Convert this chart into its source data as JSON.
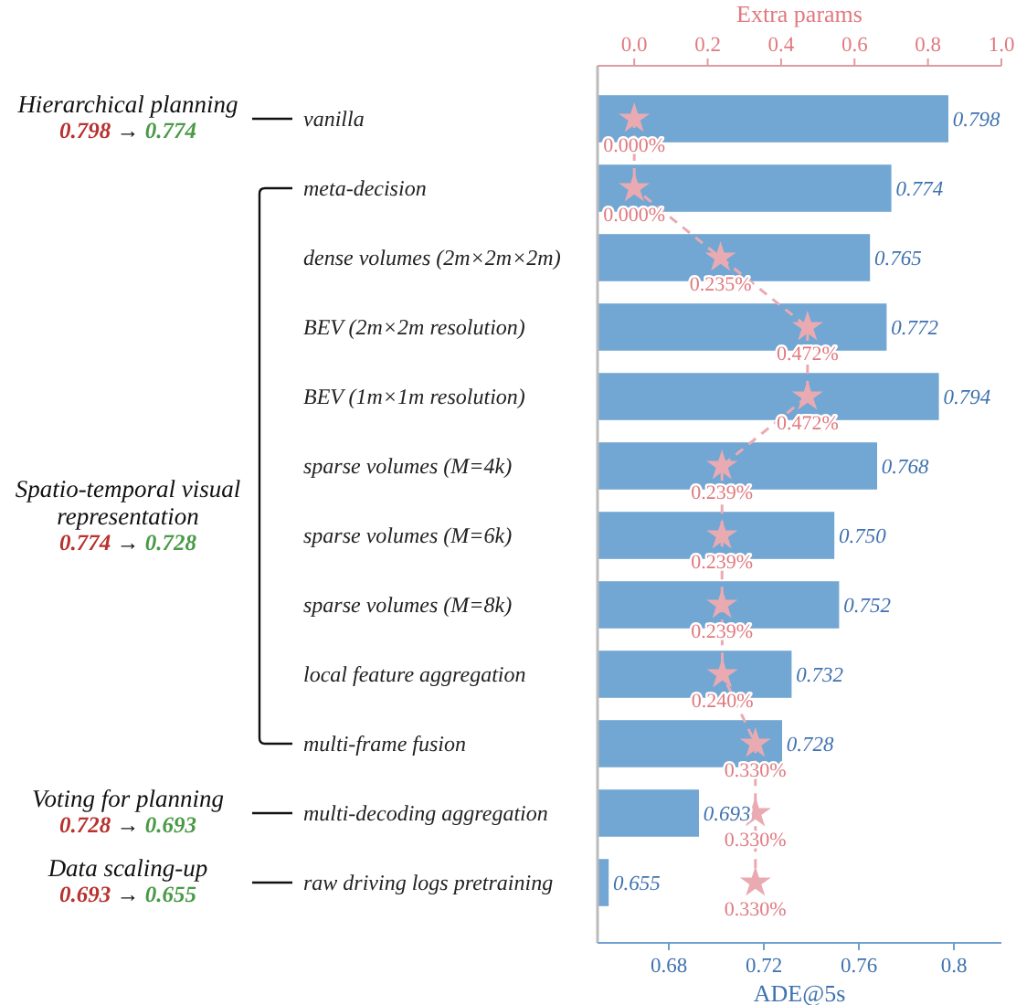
{
  "chart_data": {
    "type": "bar",
    "orientation": "horizontal",
    "categories": [
      "vanilla",
      "meta-decision",
      "dense volumes (2m×2m×2m)",
      "BEV (2m×2m resolution)",
      "BEV (1m×1m resolution)",
      "sparse volumes (M=4k)",
      "sparse volumes (M=6k)",
      "sparse volumes (M=8k)",
      "local feature aggregation",
      "multi-frame fusion",
      "multi-decoding aggregation",
      "raw driving logs pretraining"
    ],
    "series": [
      {
        "type": "bar",
        "color": "#72a7d3",
        "values": [
          0.798,
          0.774,
          0.765,
          0.772,
          0.794,
          0.768,
          0.75,
          0.752,
          0.732,
          0.728,
          0.693,
          0.655
        ],
        "value_labels": [
          "0.798",
          "0.774",
          "0.765",
          "0.772",
          "0.794",
          "0.768",
          "0.750",
          "0.752",
          "0.732",
          "0.728",
          "0.693",
          "0.655"
        ]
      },
      {
        "type": "line",
        "axis": "x2",
        "color": "#eaaab2",
        "marker": "star",
        "line_style": "dashed",
        "values": [
          0.0,
          0.0,
          0.235,
          0.472,
          0.472,
          0.239,
          0.239,
          0.239,
          0.24,
          0.33,
          0.33,
          0.33
        ],
        "value_labels": [
          "0.000%",
          "0.000%",
          "0.235%",
          "0.472%",
          "0.472%",
          "0.239%",
          "0.239%",
          "0.239%",
          "0.240%",
          "0.330%",
          "0.330%",
          "0.330%"
        ]
      }
    ],
    "xlabel": "ADE@5s",
    "xlim": [
      0.65,
      0.82
    ],
    "xticks": [
      0.68,
      0.72,
      0.76,
      0.8
    ],
    "x2label": "Extra params",
    "x2lim": [
      -0.1,
      1.0
    ],
    "x2ticks": [
      {
        "value": 0,
        "label": "0.0"
      },
      0.2,
      0.4,
      0.6,
      0.8,
      {
        "value": 1,
        "label": "1.0"
      }
    ],
    "annotations": [
      "Hierarchical planning",
      "0.798 → 0.774",
      "Spatio-temporal visual representation",
      "0.774 → 0.728",
      "Voting for planning",
      "0.728 → 0.693",
      "Data scaling-up",
      "0.693 → 0.655"
    ],
    "grid": false
  }
}
